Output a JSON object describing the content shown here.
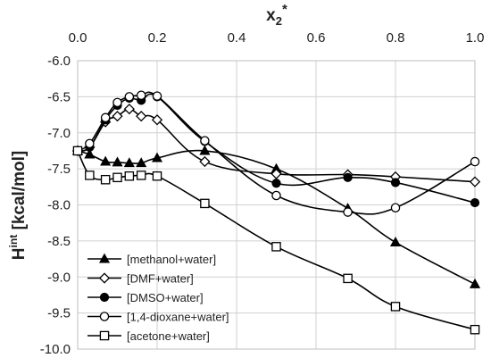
{
  "chart_data": {
    "type": "line",
    "xlabel": {
      "base": "x",
      "sub": "2",
      "sup": "*"
    },
    "ylabel": {
      "base": "H",
      "sup": "int",
      "rest": " [kcal/mol]"
    },
    "xlim": [
      0.0,
      1.0
    ],
    "ylim": [
      -10.0,
      -6.0
    ],
    "x_ticks": [
      "0.0",
      "0.2",
      "0.4",
      "0.6",
      "0.8",
      "1.0"
    ],
    "y_ticks": [
      "-6.0",
      "-6.5",
      "-7.0",
      "-7.5",
      "-8.0",
      "-8.5",
      "-9.0",
      "-9.5",
      "-10.0"
    ],
    "x_axis_position": "top",
    "grid": true,
    "legend_position": "bottom-left",
    "series": [
      {
        "name": "[methanol+water]",
        "marker": "triangle-filled",
        "x": [
          0.0,
          0.03,
          0.07,
          0.1,
          0.13,
          0.16,
          0.2,
          0.32,
          0.5,
          0.68,
          0.8,
          1.0
        ],
        "y": [
          -7.25,
          -7.3,
          -7.4,
          -7.41,
          -7.42,
          -7.42,
          -7.35,
          -7.25,
          -7.5,
          -8.05,
          -8.52,
          -9.1
        ]
      },
      {
        "name": "[DMF+water]",
        "marker": "diamond-open",
        "x": [
          0.0,
          0.03,
          0.07,
          0.1,
          0.13,
          0.16,
          0.2,
          0.32,
          0.5,
          0.68,
          0.8,
          1.0
        ],
        "y": [
          -7.25,
          -7.2,
          -6.85,
          -6.77,
          -6.67,
          -6.77,
          -6.82,
          -7.4,
          -7.57,
          -7.58,
          -7.61,
          -7.68
        ]
      },
      {
        "name": "[DMSO+water]",
        "marker": "circle-filled",
        "x": [
          0.0,
          0.03,
          0.07,
          0.1,
          0.13,
          0.16,
          0.2,
          0.32,
          0.5,
          0.68,
          0.8,
          1.0
        ],
        "y": [
          -7.25,
          -7.2,
          -6.82,
          -6.62,
          -6.52,
          -6.55,
          -6.5,
          -7.12,
          -7.7,
          -7.62,
          -7.69,
          -7.97
        ]
      },
      {
        "name": "[1,4-dioxane+water]",
        "marker": "circle-open",
        "x": [
          0.0,
          0.03,
          0.07,
          0.1,
          0.13,
          0.16,
          0.2,
          0.32,
          0.5,
          0.68,
          0.8,
          1.0
        ],
        "y": [
          -7.25,
          -7.15,
          -6.79,
          -6.58,
          -6.5,
          -6.48,
          -6.49,
          -7.11,
          -7.87,
          -8.1,
          -8.04,
          -7.4
        ]
      },
      {
        "name": "[acetone+water]",
        "marker": "square-open",
        "x": [
          0.0,
          0.03,
          0.07,
          0.1,
          0.13,
          0.16,
          0.2,
          0.32,
          0.5,
          0.68,
          0.8,
          1.0
        ],
        "y": [
          -7.25,
          -7.59,
          -7.65,
          -7.62,
          -7.6,
          -7.59,
          -7.6,
          -7.98,
          -8.58,
          -9.02,
          -9.41,
          -9.73
        ]
      }
    ]
  }
}
